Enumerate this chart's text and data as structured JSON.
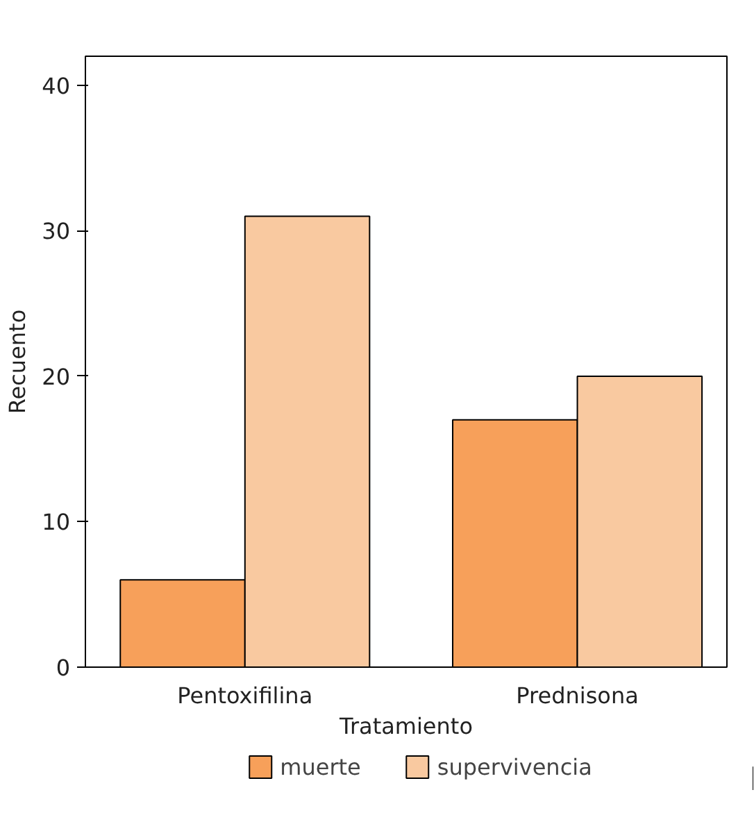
{
  "chart_data": {
    "type": "bar",
    "categories": [
      "Pentoxifilina",
      "Prednisona"
    ],
    "xlabel": "Tratamiento",
    "ylabel": "Recuento",
    "series": [
      {
        "name": "muerte",
        "color": "#f7a05a",
        "values": [
          6,
          17
        ]
      },
      {
        "name": "supervivencia",
        "color": "#f9c9a0",
        "values": [
          31,
          20
        ]
      }
    ],
    "ylim": [
      0,
      42
    ],
    "yticks": [
      0,
      10,
      20,
      30,
      40
    ],
    "grid": false,
    "legend": "bottom"
  }
}
